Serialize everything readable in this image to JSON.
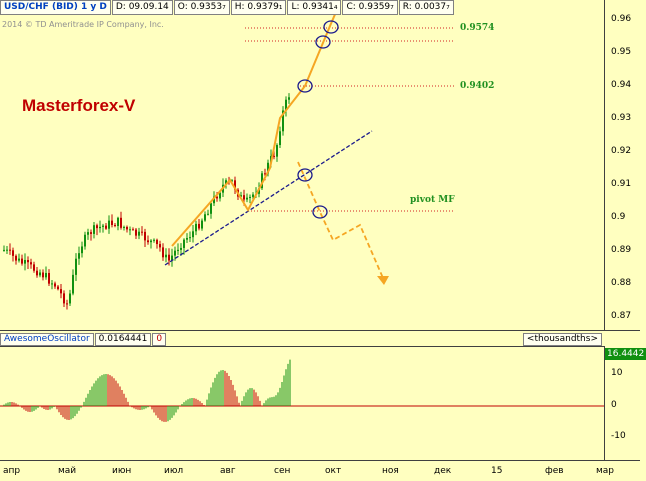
{
  "info_bar": {
    "symbol": "USD/CHF (BID) 1 y D",
    "date": "D: 09.09.14",
    "open": "O: 0.9353₇",
    "high": "H: 0.9379₁",
    "low": "L: 0.9341₄",
    "close": "C: 0.9359₇",
    "range": "R: 0.0037₇"
  },
  "copyright": "2014 © TD Ameritrade IP Company, Inc.",
  "brand": "Masterforex-V",
  "levels": {
    "upper": "0.9574",
    "middle": "0.9402",
    "pivot": "pivot MF"
  },
  "price_axis": [
    "0.96",
    "0.95",
    "0.94",
    "0.93",
    "0.92",
    "0.91",
    "0.9",
    "0.89",
    "0.88",
    "0.87"
  ],
  "oscillator": {
    "name": "AwesomeOscillator",
    "value": "0.0164441",
    "zero": "0",
    "scale": "<thousandths>",
    "badge": "16.4442",
    "axis": [
      "10",
      "0",
      "-10"
    ]
  },
  "time_axis": [
    "апр",
    "май",
    "июн",
    "июл",
    "авг",
    "сен",
    "окт",
    "ноя",
    "дек",
    "15",
    "фев",
    "мар"
  ],
  "colors": {
    "background": "#ffffc0",
    "up_candle": "#109010",
    "down_candle": "#c00000",
    "forecast_arrow": "#f5a623",
    "trend_line": "#1a1a8c",
    "level_line": "#d02020"
  },
  "icons": {
    "top_right": "lock-icon"
  }
}
